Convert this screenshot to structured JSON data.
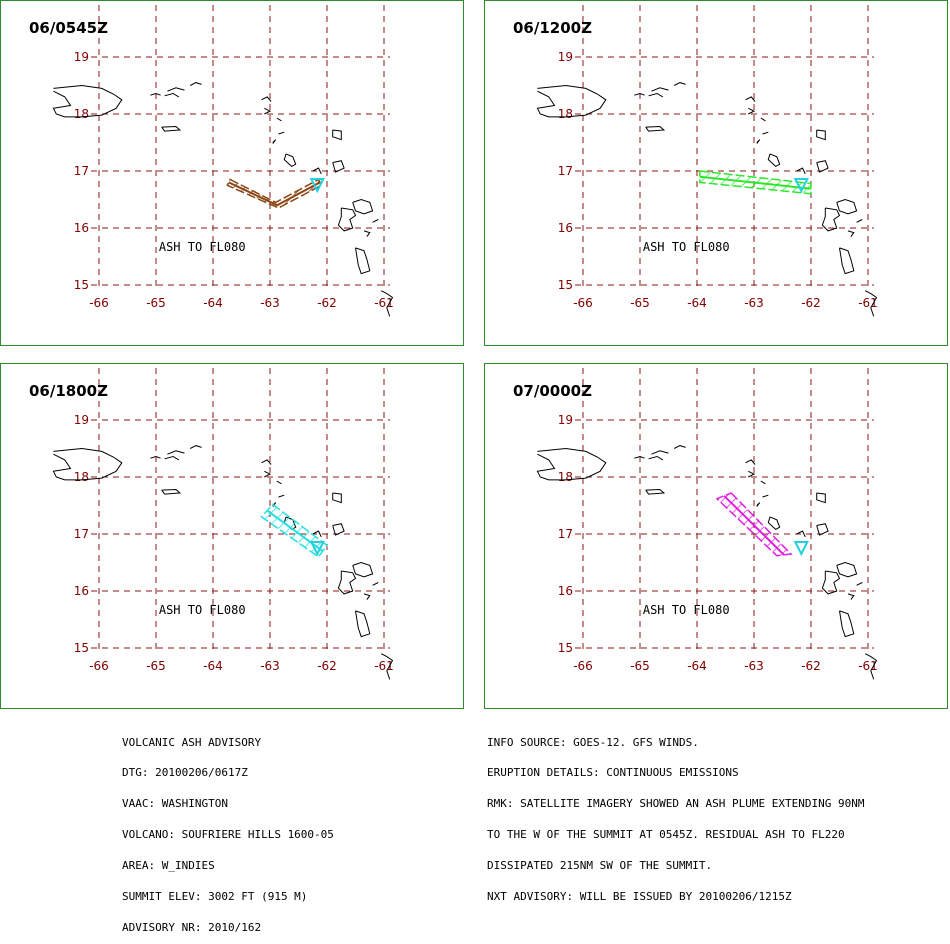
{
  "panels": [
    {
      "title": "06/0545Z",
      "label": "ASH TO FL080",
      "color": "#8b4513",
      "polygon": [
        [
          -63.7,
          16.85
        ],
        [
          -62.9,
          16.45
        ],
        [
          -62.15,
          16.85
        ],
        [
          -62.1,
          16.75
        ],
        [
          -62.85,
          16.35
        ],
        [
          -63.75,
          16.75
        ]
      ]
    },
    {
      "title": "06/1200Z",
      "label": "ASH TO FL080",
      "color": "#2ee62e",
      "polygon": [
        [
          -63.95,
          17.0
        ],
        [
          -62.0,
          16.78
        ],
        [
          -62.0,
          16.6
        ],
        [
          -63.95,
          16.8
        ]
      ]
    },
    {
      "title": "06/1800Z",
      "label": "ASH TO FL080",
      "color": "#22e0e0",
      "polygon": [
        [
          -62.95,
          17.52
        ],
        [
          -62.0,
          16.8
        ],
        [
          -62.15,
          16.6
        ],
        [
          -63.15,
          17.3
        ]
      ]
    },
    {
      "title": "07/0000Z",
      "label": "ASH TO FL080",
      "color": "#e020e0",
      "polygon": [
        [
          -63.4,
          17.72
        ],
        [
          -62.35,
          16.65
        ],
        [
          -62.6,
          16.62
        ],
        [
          -63.65,
          17.62
        ]
      ]
    }
  ],
  "axes": {
    "lon_ticks": [
      "-66",
      "-65",
      "-64",
      "-63",
      "-62",
      "-61"
    ],
    "lat_ticks": [
      "19",
      "18",
      "17",
      "16",
      "15"
    ]
  },
  "summit_icon": "volcano-triangle-icon",
  "advisory_left": [
    "VOLCANIC ASH ADVISORY",
    "DTG: 20100206/0617Z",
    "VAAC: WASHINGTON",
    "VOLCANO: SOUFRIERE HILLS 1600-05",
    "AREA: W_INDIES",
    "SUMMIT ELEV: 3002 FT (915 M)",
    "ADVISORY NR: 2010/162"
  ],
  "advisory_right": [
    "INFO SOURCE: GOES-12. GFS WINDS.",
    "ERUPTION DETAILS: CONTINUOUS EMISSIONS",
    "RMK: SATELLITE IMAGERY SHOWED AN ASH PLUME EXTENDING 90NM",
    "TO THE W OF THE SUMMIT AT 0545Z. RESIDUAL ASH TO FL220",
    "DISSIPATED 215NM SW OF THE SUMMIT.",
    "NXT ADVISORY: WILL BE ISSUED BY 20100206/1215Z"
  ]
}
